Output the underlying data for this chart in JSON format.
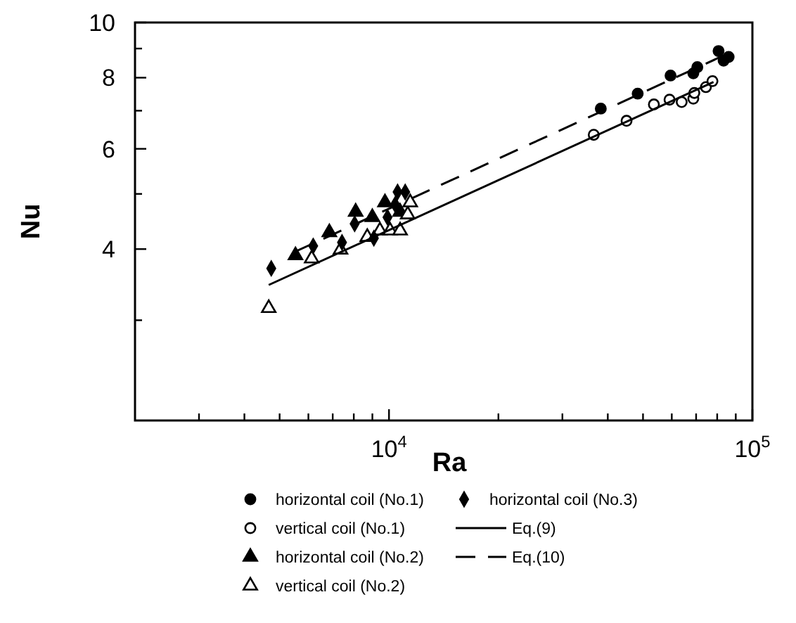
{
  "chart_data": {
    "type": "scatter",
    "xlabel": "Ra",
    "ylabel": "Nu",
    "log": "xy",
    "xlim": [
      2000,
      100000
    ],
    "ylim": [
      2,
      10
    ],
    "xticks": [
      {
        "value": 3000,
        "label": null
      },
      {
        "value": 4000,
        "label": null
      },
      {
        "value": 5000,
        "label": null
      },
      {
        "value": 6000,
        "label": null
      },
      {
        "value": 7000,
        "label": null
      },
      {
        "value": 8000,
        "label": null
      },
      {
        "value": 9000,
        "label": null
      },
      {
        "value": 10000,
        "label": "10$^{4}$"
      },
      {
        "value": 20000,
        "label": null
      },
      {
        "value": 30000,
        "label": null
      },
      {
        "value": 40000,
        "label": null
      },
      {
        "value": 50000,
        "label": null
      },
      {
        "value": 60000,
        "label": null
      },
      {
        "value": 70000,
        "label": null
      },
      {
        "value": 80000,
        "label": null
      },
      {
        "value": 90000,
        "label": null
      },
      {
        "value": 100000,
        "label": "10$^{5}$"
      }
    ],
    "yticks": [
      {
        "value": 3,
        "label": null
      },
      4,
      {
        "value": 5,
        "label": null
      },
      6,
      {
        "value": 7,
        "label": null
      },
      8,
      {
        "value": 9,
        "label": null
      },
      10
    ],
    "legend": "bottom",
    "series": [
      {
        "name": "horizontal coil (No.1)",
        "marker": "circle",
        "color": "#000000",
        "x": [
          38260,
          48340,
          59530,
          68770,
          70540,
          80700,
          83320,
          86020
        ],
        "values": [
          7.06,
          7.5,
          8.07,
          8.14,
          8.35,
          8.91,
          8.57,
          8.7
        ]
      },
      {
        "name": "vertical coil (No.1)",
        "marker": "circle",
        "color": "#ffffff",
        "x": [
          36590,
          45050,
          53570,
          59150,
          63880,
          68770,
          69210,
          74470,
          77640
        ],
        "values": [
          6.35,
          6.72,
          7.18,
          7.32,
          7.25,
          7.35,
          7.52,
          7.7,
          7.89
        ]
      },
      {
        "name": "horizontal coil (No.2)",
        "marker": "triangle",
        "color": "#000000",
        "x": [
          5529,
          6853,
          8095,
          8997,
          9747,
          10729
        ],
        "values": [
          3.9,
          4.28,
          4.65,
          4.55,
          4.83,
          4.65
        ]
      },
      {
        "name": "vertical coil (No.2)",
        "marker": "triangle",
        "color": "#ffffff",
        "x": [
          4667,
          6126,
          7355,
          8712,
          9440,
          10064,
          10729,
          11256,
          11440
        ],
        "values": [
          3.15,
          3.85,
          3.99,
          4.2,
          4.31,
          4.31,
          4.31,
          4.6,
          4.83
        ]
      },
      {
        "name": "horizontal coil (No.3)",
        "marker": "diamond",
        "color": "#000000",
        "x": [
          4742,
          6185,
          8043,
          9085,
          9904,
          10559,
          11080,
          10392,
          7425
        ],
        "values": [
          3.7,
          4.05,
          4.43,
          4.18,
          4.55,
          5.04,
          5.04,
          4.79,
          4.11
        ]
      },
      {
        "name": "Eq.(9)",
        "type": "line",
        "line_style": "solid",
        "color": "#000000",
        "x": [
          4667,
          78150
        ],
        "values": [
          3.46,
          7.86
        ]
      },
      {
        "name": "Eq.(10)",
        "type": "line",
        "line_style": "dashed",
        "color": "#000000",
        "x": [
          5477,
          83320
        ],
        "values": [
          3.95,
          8.75
        ]
      }
    ]
  }
}
